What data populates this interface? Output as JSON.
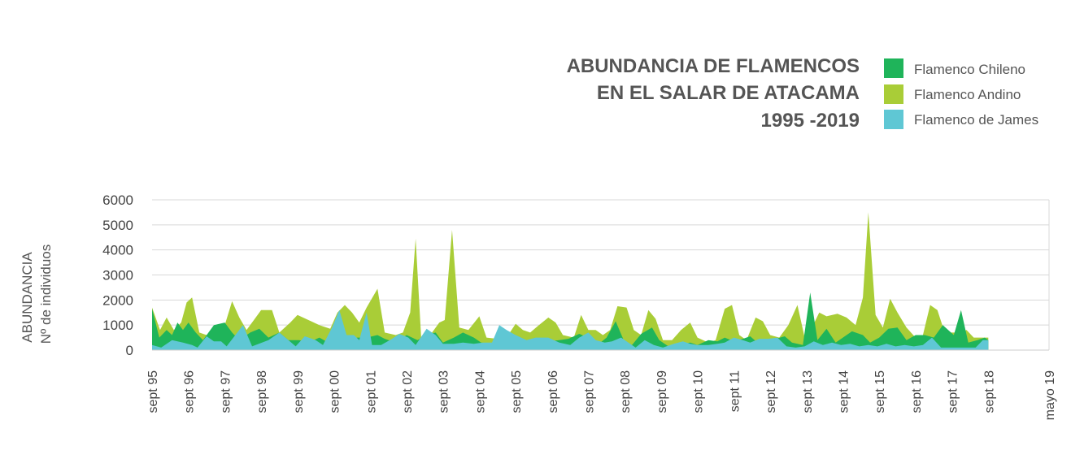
{
  "chart_data": {
    "type": "area",
    "title": [
      "ABUNDANCIA DE FLAMENCOS",
      "EN EL SALAR DE ATACAMA",
      "1995 -2019"
    ],
    "ylabel": [
      "ABUNDANCIA",
      "Nº de individuos"
    ],
    "xlabel": "",
    "ylim": [
      0,
      6000
    ],
    "yticks": [
      0,
      1000,
      2000,
      3000,
      4000,
      5000,
      6000
    ],
    "grid": true,
    "legend_position": "top-right",
    "x_range": [
      0,
      24.67
    ],
    "x_ticks": [
      {
        "t": 0,
        "label": "sept 95"
      },
      {
        "t": 1,
        "label": "sept 96"
      },
      {
        "t": 2,
        "label": "sept 97"
      },
      {
        "t": 3,
        "label": "sept 98"
      },
      {
        "t": 4,
        "label": "sept 99"
      },
      {
        "t": 5,
        "label": "sept 00"
      },
      {
        "t": 6,
        "label": "sept 01"
      },
      {
        "t": 7,
        "label": "sept 02"
      },
      {
        "t": 8,
        "label": "sept 03"
      },
      {
        "t": 9,
        "label": "sept 04"
      },
      {
        "t": 10,
        "label": "sept 05"
      },
      {
        "t": 11,
        "label": "sept 06"
      },
      {
        "t": 12,
        "label": "sept 07"
      },
      {
        "t": 13,
        "label": "sept 08"
      },
      {
        "t": 14,
        "label": "sept 09"
      },
      {
        "t": 15,
        "label": "sept 10"
      },
      {
        "t": 16,
        "label": "sept 11"
      },
      {
        "t": 17,
        "label": "sept 12"
      },
      {
        "t": 18,
        "label": "sept 13"
      },
      {
        "t": 19,
        "label": "sept 14"
      },
      {
        "t": 20,
        "label": "sept 15"
      },
      {
        "t": 21,
        "label": "sept 16"
      },
      {
        "t": 22,
        "label": "sept 17"
      },
      {
        "t": 23,
        "label": "sept 18"
      },
      {
        "t": 24.67,
        "label": "mayo 19"
      }
    ],
    "series": [
      {
        "name": "Flamenco Andino",
        "color": "#a9cd37",
        "points": [
          [
            0,
            1700
          ],
          [
            0.22,
            800
          ],
          [
            0.4,
            1300
          ],
          [
            0.6,
            800
          ],
          [
            0.8,
            1100
          ],
          [
            0.95,
            1900
          ],
          [
            1.1,
            2100
          ],
          [
            1.3,
            700
          ],
          [
            1.5,
            600
          ],
          [
            1.7,
            800
          ],
          [
            2,
            1000
          ],
          [
            2.2,
            1950
          ],
          [
            2.4,
            1300
          ],
          [
            2.6,
            800
          ],
          [
            2.8,
            1200
          ],
          [
            3,
            1600
          ],
          [
            3.3,
            1600
          ],
          [
            3.5,
            700
          ],
          [
            3.8,
            1100
          ],
          [
            4,
            1400
          ],
          [
            4.3,
            1200
          ],
          [
            4.6,
            1000
          ],
          [
            4.9,
            850
          ],
          [
            5.1,
            1500
          ],
          [
            5.3,
            1800
          ],
          [
            5.5,
            1500
          ],
          [
            5.7,
            1100
          ],
          [
            5.9,
            1700
          ],
          [
            6.2,
            2450
          ],
          [
            6.4,
            700
          ],
          [
            6.7,
            600
          ],
          [
            6.9,
            700
          ],
          [
            7.1,
            1500
          ],
          [
            7.25,
            4450
          ],
          [
            7.4,
            500
          ],
          [
            7.7,
            700
          ],
          [
            7.9,
            1100
          ],
          [
            8.05,
            1200
          ],
          [
            8.25,
            4800
          ],
          [
            8.45,
            900
          ],
          [
            8.7,
            800
          ],
          [
            9,
            1350
          ],
          [
            9.2,
            500
          ],
          [
            9.5,
            450
          ],
          [
            9.7,
            400
          ],
          [
            10,
            1050
          ],
          [
            10.2,
            800
          ],
          [
            10.4,
            700
          ],
          [
            10.6,
            950
          ],
          [
            10.9,
            1300
          ],
          [
            11.1,
            1100
          ],
          [
            11.3,
            600
          ],
          [
            11.6,
            500
          ],
          [
            11.8,
            1400
          ],
          [
            12,
            800
          ],
          [
            12.2,
            800
          ],
          [
            12.4,
            600
          ],
          [
            12.6,
            800
          ],
          [
            12.8,
            1750
          ],
          [
            13.05,
            1700
          ],
          [
            13.25,
            800
          ],
          [
            13.45,
            600
          ],
          [
            13.65,
            1600
          ],
          [
            13.85,
            1250
          ],
          [
            14.05,
            400
          ],
          [
            14.3,
            400
          ],
          [
            14.55,
            800
          ],
          [
            14.8,
            1100
          ],
          [
            15,
            500
          ],
          [
            15.3,
            300
          ],
          [
            15.5,
            400
          ],
          [
            15.75,
            1650
          ],
          [
            15.95,
            1800
          ],
          [
            16.15,
            600
          ],
          [
            16.35,
            400
          ],
          [
            16.6,
            1300
          ],
          [
            16.8,
            1150
          ],
          [
            17,
            600
          ],
          [
            17.25,
            500
          ],
          [
            17.5,
            1000
          ],
          [
            17.75,
            1800
          ],
          [
            17.95,
            500
          ],
          [
            18.15,
            900
          ],
          [
            18.35,
            1500
          ],
          [
            18.55,
            1350
          ],
          [
            18.85,
            1450
          ],
          [
            19.1,
            1300
          ],
          [
            19.35,
            1000
          ],
          [
            19.55,
            2100
          ],
          [
            19.7,
            5500
          ],
          [
            19.9,
            1400
          ],
          [
            20.1,
            900
          ],
          [
            20.3,
            2050
          ],
          [
            20.5,
            1500
          ],
          [
            20.75,
            900
          ],
          [
            21,
            500
          ],
          [
            21.2,
            600
          ],
          [
            21.4,
            1800
          ],
          [
            21.6,
            1600
          ],
          [
            21.8,
            700
          ],
          [
            22,
            700
          ],
          [
            22.2,
            700
          ],
          [
            22.4,
            800
          ],
          [
            22.6,
            500
          ],
          [
            22.8,
            500
          ],
          [
            23,
            500
          ]
        ]
      },
      {
        "name": "Flamenco Chileno",
        "color": "#1fb45a",
        "points": [
          [
            0,
            1650
          ],
          [
            0.2,
            500
          ],
          [
            0.4,
            800
          ],
          [
            0.55,
            600
          ],
          [
            0.7,
            1100
          ],
          [
            0.85,
            800
          ],
          [
            1,
            1100
          ],
          [
            1.2,
            700
          ],
          [
            1.4,
            400
          ],
          [
            1.7,
            1000
          ],
          [
            2,
            1100
          ],
          [
            2.2,
            700
          ],
          [
            2.4,
            400
          ],
          [
            2.7,
            700
          ],
          [
            2.95,
            850
          ],
          [
            3.2,
            500
          ],
          [
            3.5,
            700
          ],
          [
            3.75,
            400
          ],
          [
            4.05,
            400
          ],
          [
            4.3,
            300
          ],
          [
            4.6,
            500
          ],
          [
            4.85,
            300
          ],
          [
            5.1,
            200
          ],
          [
            5.4,
            400
          ],
          [
            5.65,
            500
          ],
          [
            5.9,
            500
          ],
          [
            6.2,
            600
          ],
          [
            6.4,
            450
          ],
          [
            6.7,
            300
          ],
          [
            7,
            600
          ],
          [
            7.3,
            400
          ],
          [
            7.55,
            600
          ],
          [
            7.8,
            700
          ],
          [
            8,
            300
          ],
          [
            8.3,
            500
          ],
          [
            8.55,
            700
          ],
          [
            8.85,
            500
          ],
          [
            9.05,
            300
          ],
          [
            9.35,
            250
          ],
          [
            9.6,
            200
          ],
          [
            9.85,
            300
          ],
          [
            10.1,
            250
          ],
          [
            10.35,
            400
          ],
          [
            10.6,
            300
          ],
          [
            10.9,
            350
          ],
          [
            11.2,
            400
          ],
          [
            11.45,
            450
          ],
          [
            11.75,
            650
          ],
          [
            12,
            500
          ],
          [
            12.25,
            200
          ],
          [
            12.5,
            500
          ],
          [
            12.75,
            1150
          ],
          [
            13,
            300
          ],
          [
            13.2,
            200
          ],
          [
            13.45,
            650
          ],
          [
            13.75,
            900
          ],
          [
            13.95,
            400
          ],
          [
            14.2,
            150
          ],
          [
            14.5,
            200
          ],
          [
            14.8,
            300
          ],
          [
            15,
            200
          ],
          [
            15.3,
            400
          ],
          [
            15.55,
            350
          ],
          [
            15.75,
            500
          ],
          [
            16,
            350
          ],
          [
            16.25,
            450
          ],
          [
            16.45,
            550
          ],
          [
            16.65,
            300
          ],
          [
            16.9,
            300
          ],
          [
            17.15,
            450
          ],
          [
            17.4,
            550
          ],
          [
            17.6,
            300
          ],
          [
            17.9,
            200
          ],
          [
            18.1,
            2300
          ],
          [
            18.3,
            400
          ],
          [
            18.55,
            850
          ],
          [
            18.8,
            300
          ],
          [
            19,
            500
          ],
          [
            19.25,
            750
          ],
          [
            19.55,
            600
          ],
          [
            19.75,
            300
          ],
          [
            20,
            500
          ],
          [
            20.25,
            850
          ],
          [
            20.5,
            900
          ],
          [
            20.75,
            400
          ],
          [
            21,
            600
          ],
          [
            21.25,
            600
          ],
          [
            21.5,
            500
          ],
          [
            21.75,
            1000
          ],
          [
            22.05,
            600
          ],
          [
            22.25,
            1600
          ],
          [
            22.45,
            300
          ],
          [
            22.7,
            400
          ],
          [
            22.9,
            500
          ],
          [
            23,
            400
          ]
        ]
      },
      {
        "name": "Flamenco de James",
        "color": "#5fc7d4",
        "points": [
          [
            0,
            200
          ],
          [
            0.25,
            100
          ],
          [
            0.55,
            400
          ],
          [
            0.85,
            300
          ],
          [
            1.1,
            200
          ],
          [
            1.25,
            100
          ],
          [
            1.5,
            550
          ],
          [
            1.7,
            350
          ],
          [
            1.9,
            350
          ],
          [
            2.05,
            150
          ],
          [
            2.5,
            1000
          ],
          [
            2.75,
            150
          ],
          [
            3.2,
            400
          ],
          [
            3.5,
            700
          ],
          [
            3.75,
            400
          ],
          [
            3.95,
            150
          ],
          [
            4.2,
            550
          ],
          [
            4.5,
            400
          ],
          [
            4.7,
            200
          ],
          [
            4.95,
            900
          ],
          [
            5.15,
            1600
          ],
          [
            5.35,
            600
          ],
          [
            5.55,
            600
          ],
          [
            5.7,
            400
          ],
          [
            5.9,
            1500
          ],
          [
            6.05,
            200
          ],
          [
            6.3,
            200
          ],
          [
            6.6,
            450
          ],
          [
            6.8,
            650
          ],
          [
            7.05,
            500
          ],
          [
            7.25,
            200
          ],
          [
            7.55,
            850
          ],
          [
            7.8,
            600
          ],
          [
            8,
            250
          ],
          [
            8.3,
            250
          ],
          [
            8.55,
            300
          ],
          [
            8.85,
            250
          ],
          [
            9.1,
            300
          ],
          [
            9.35,
            300
          ],
          [
            9.55,
            1000
          ],
          [
            9.75,
            800
          ],
          [
            10,
            600
          ],
          [
            10.3,
            400
          ],
          [
            10.55,
            500
          ],
          [
            10.9,
            500
          ],
          [
            11.2,
            300
          ],
          [
            11.5,
            200
          ],
          [
            11.75,
            500
          ],
          [
            12,
            700
          ],
          [
            12.2,
            400
          ],
          [
            12.45,
            300
          ],
          [
            12.65,
            350
          ],
          [
            12.9,
            500
          ],
          [
            13.1,
            300
          ],
          [
            13.3,
            100
          ],
          [
            13.55,
            400
          ],
          [
            13.8,
            200
          ],
          [
            14.05,
            100
          ],
          [
            14.35,
            250
          ],
          [
            14.6,
            350
          ],
          [
            14.8,
            250
          ],
          [
            15,
            200
          ],
          [
            15.3,
            200
          ],
          [
            15.55,
            250
          ],
          [
            15.75,
            300
          ],
          [
            16,
            500
          ],
          [
            16.25,
            400
          ],
          [
            16.45,
            300
          ],
          [
            16.7,
            450
          ],
          [
            16.95,
            450
          ],
          [
            17.2,
            500
          ],
          [
            17.45,
            150
          ],
          [
            17.7,
            100
          ],
          [
            17.95,
            150
          ],
          [
            18.2,
            350
          ],
          [
            18.45,
            200
          ],
          [
            18.7,
            300
          ],
          [
            18.95,
            200
          ],
          [
            19.2,
            250
          ],
          [
            19.45,
            150
          ],
          [
            19.7,
            200
          ],
          [
            19.95,
            150
          ],
          [
            20.2,
            250
          ],
          [
            20.45,
            150
          ],
          [
            20.7,
            200
          ],
          [
            20.95,
            150
          ],
          [
            21.2,
            200
          ],
          [
            21.45,
            500
          ],
          [
            21.7,
            100
          ],
          [
            21.95,
            100
          ],
          [
            22.2,
            100
          ],
          [
            22.45,
            100
          ],
          [
            22.65,
            100
          ],
          [
            22.85,
            400
          ],
          [
            23,
            400
          ]
        ]
      }
    ]
  }
}
